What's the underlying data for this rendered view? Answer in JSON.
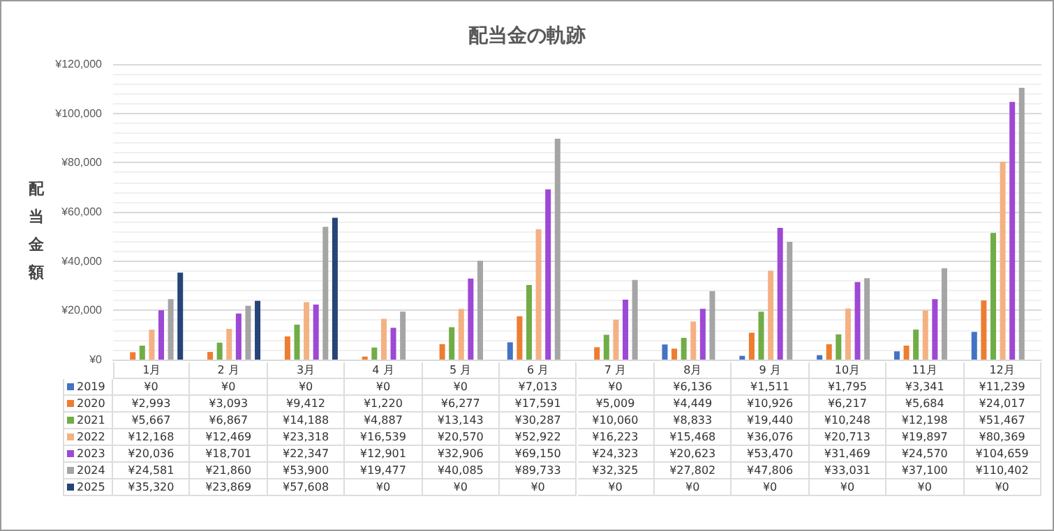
{
  "chart_data": {
    "type": "bar",
    "title": "配当金の軌跡",
    "ylabel": "配当金額",
    "categories": [
      "1月",
      "2 月",
      "3月",
      "4 月",
      "5 月",
      "6 月",
      "7 月",
      "8月",
      "9 月",
      "10月",
      "11月",
      "12月"
    ],
    "ylim": [
      0,
      120000
    ],
    "yticks": [
      {
        "value": 0,
        "label": "¥0"
      },
      {
        "value": 20000,
        "label": "¥20,000"
      },
      {
        "value": 40000,
        "label": "¥40,000"
      },
      {
        "value": 60000,
        "label": "¥60,000"
      },
      {
        "value": 80000,
        "label": "¥80,000"
      },
      {
        "value": 100000,
        "label": "¥100,000"
      },
      {
        "value": 120000,
        "label": "¥120,000"
      }
    ],
    "grid": "y",
    "legend": "bottom",
    "series": [
      {
        "name": "2019",
        "color": "#4472c4",
        "values": [
          0,
          0,
          0,
          0,
          0,
          7013,
          0,
          6136,
          1511,
          1795,
          3341,
          11239
        ],
        "value_labels": [
          "¥0",
          "¥0",
          "¥0",
          "¥0",
          "¥0",
          "¥7,013",
          "¥0",
          "¥6,136",
          "¥1,511",
          "¥1,795",
          "¥3,341",
          "¥11,239"
        ]
      },
      {
        "name": "2020",
        "color": "#ed7d31",
        "values": [
          2993,
          3093,
          9412,
          1220,
          6277,
          17591,
          5009,
          4449,
          10926,
          6217,
          5684,
          24017
        ],
        "value_labels": [
          "¥2,993",
          "¥3,093",
          "¥9,412",
          "¥1,220",
          "¥6,277",
          "¥17,591",
          "¥5,009",
          "¥4,449",
          "¥10,926",
          "¥6,217",
          "¥5,684",
          "¥24,017"
        ]
      },
      {
        "name": "2021",
        "color": "#70ad47",
        "values": [
          5667,
          6867,
          14188,
          4887,
          13143,
          30287,
          10060,
          8833,
          19440,
          10248,
          12198,
          51467
        ],
        "value_labels": [
          "¥5,667",
          "¥6,867",
          "¥14,188",
          "¥4,887",
          "¥13,143",
          "¥30,287",
          "¥10,060",
          "¥8,833",
          "¥19,440",
          "¥10,248",
          "¥12,198",
          "¥51,467"
        ]
      },
      {
        "name": "2022",
        "color": "#f4b183",
        "values": [
          12168,
          12469,
          23318,
          16539,
          20570,
          52922,
          16223,
          15468,
          36076,
          20713,
          19897,
          80369
        ],
        "value_labels": [
          "¥12,168",
          "¥12,469",
          "¥23,318",
          "¥16,539",
          "¥20,570",
          "¥52,922",
          "¥16,223",
          "¥15,468",
          "¥36,076",
          "¥20,713",
          "¥19,897",
          "¥80,369"
        ]
      },
      {
        "name": "2023",
        "color": "#9e48d6",
        "values": [
          20036,
          18701,
          22347,
          12901,
          32906,
          69150,
          24323,
          20623,
          53470,
          31469,
          24570,
          104659
        ],
        "value_labels": [
          "¥20,036",
          "¥18,701",
          "¥22,347",
          "¥12,901",
          "¥32,906",
          "¥69,150",
          "¥24,323",
          "¥20,623",
          "¥53,470",
          "¥31,469",
          "¥24,570",
          "¥104,659"
        ]
      },
      {
        "name": "2024",
        "color": "#a5a5a5",
        "values": [
          24581,
          21860,
          53900,
          19477,
          40085,
          89733,
          32325,
          27802,
          47806,
          33031,
          37100,
          110402
        ],
        "value_labels": [
          "¥24,581",
          "¥21,860",
          "¥53,900",
          "¥19,477",
          "¥40,085",
          "¥89,733",
          "¥32,325",
          "¥27,802",
          "¥47,806",
          "¥33,031",
          "¥37,100",
          "¥110,402"
        ]
      },
      {
        "name": "2025",
        "color": "#264478",
        "values": [
          35320,
          23869,
          57608,
          0,
          0,
          0,
          0,
          0,
          0,
          0,
          0,
          0
        ],
        "value_labels": [
          "¥35,320",
          "¥23,869",
          "¥57,608",
          "¥0",
          "¥0",
          "¥0",
          "¥0",
          "¥0",
          "¥0",
          "¥0",
          "¥0",
          "¥0"
        ]
      }
    ]
  }
}
